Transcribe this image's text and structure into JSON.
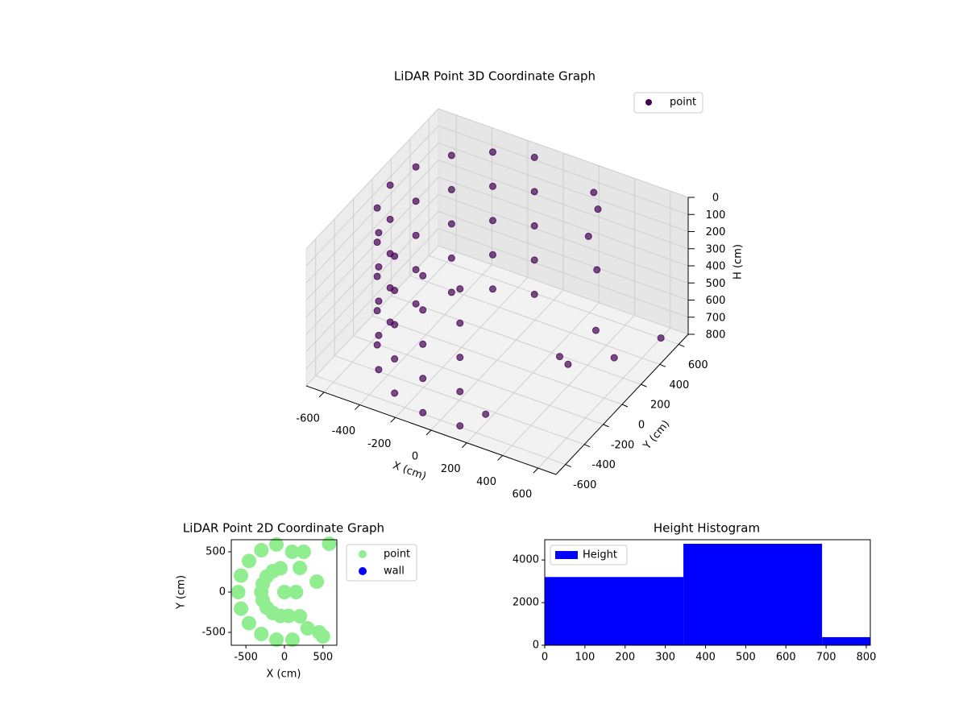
{
  "chart_data": [
    {
      "type": "scatter3d",
      "title": "LiDAR Point 3D Coordinate Graph",
      "xlabel": "X (cm)",
      "ylabel": "Y (cm)",
      "zlabel": "H (cm)",
      "series": [
        {
          "name": "point",
          "color": "#440154",
          "x": [
            -104,
            -104,
            -104,
            -104,
            -104,
            -300,
            -300,
            -300,
            -300,
            -300,
            -460,
            -460,
            -460,
            -460,
            -460,
            -564,
            -564,
            -564,
            -564,
            -564,
            -600,
            -600,
            -600,
            -600,
            -600,
            -564,
            -564,
            -564,
            -564,
            -564,
            -460,
            -460,
            -460,
            -460,
            -460,
            -300,
            -300,
            -300,
            -300,
            -300,
            -104,
            -104,
            -104,
            -104,
            -104,
            104,
            104,
            104,
            104,
            104,
            300,
            400,
            500,
            450,
            300,
            550,
            200,
            600,
            350,
            250
          ],
          "y": [
            591,
            591,
            591,
            591,
            591,
            520,
            520,
            520,
            520,
            520,
            386,
            386,
            386,
            386,
            386,
            205,
            205,
            205,
            205,
            205,
            0,
            0,
            0,
            0,
            0,
            -205,
            -205,
            -205,
            -205,
            -205,
            -386,
            -386,
            -386,
            -386,
            -386,
            -520,
            -520,
            -520,
            -520,
            -520,
            -591,
            -591,
            -591,
            -591,
            -591,
            -591,
            -591,
            -591,
            -591,
            -591,
            500,
            300,
            100,
            -100,
            400,
            200,
            -500,
            600,
            0,
            550
          ],
          "z": [
            0,
            200,
            400,
            600,
            800,
            0,
            200,
            400,
            600,
            800,
            0,
            200,
            400,
            600,
            800,
            0,
            200,
            400,
            600,
            800,
            0,
            200,
            400,
            600,
            800,
            0,
            200,
            400,
            600,
            800,
            0,
            200,
            400,
            600,
            800,
            0,
            200,
            400,
            600,
            800,
            0,
            200,
            400,
            600,
            800,
            0,
            200,
            400,
            600,
            800,
            100,
            300,
            500,
            600,
            200,
            700,
            750,
            800,
            650,
            50
          ]
        }
      ],
      "xlim": [
        -700,
        700
      ],
      "ylim": [
        -700,
        700
      ],
      "zlim": [
        800,
        0
      ],
      "xticks": [
        -600,
        -400,
        -200,
        0,
        200,
        400,
        600
      ],
      "yticks": [
        -600,
        -400,
        -200,
        0,
        200,
        400,
        600
      ],
      "zticks": [
        0,
        100,
        200,
        300,
        400,
        500,
        600,
        700,
        800
      ],
      "grid": true,
      "legend": "upper right"
    },
    {
      "type": "scatter",
      "title": "LiDAR Point 2D Coordinate Graph",
      "xlabel": "X (cm)",
      "ylabel": "Y (cm)",
      "series": [
        {
          "name": "point",
          "color": "#90ee90",
          "x": [
            -104,
            -300,
            -460,
            -564,
            -600,
            -564,
            -460,
            -300,
            -104,
            104,
            -52,
            -150,
            -230,
            -282,
            -300,
            -282,
            -230,
            -150,
            -52,
            52,
            0,
            150,
            200,
            200,
            100,
            250,
            300,
            450,
            500,
            420,
            580
          ],
          "y": [
            591,
            520,
            386,
            205,
            0,
            -205,
            -386,
            -520,
            -591,
            -591,
            296,
            260,
            193,
            102,
            0,
            -102,
            -193,
            -260,
            -296,
            -296,
            0,
            0,
            300,
            -300,
            500,
            500,
            -450,
            -500,
            -550,
            130,
            600
          ]
        },
        {
          "name": "wall",
          "color": "#0000ff",
          "x": [],
          "y": []
        }
      ],
      "xlim": [
        -690,
        680
      ],
      "ylim": [
        -660,
        650
      ],
      "xticks": [
        -500,
        0,
        500
      ],
      "yticks": [
        -500,
        0,
        500
      ],
      "legend": "outside right"
    },
    {
      "type": "histogram",
      "title": "Height Histogram",
      "series": [
        {
          "name": "Height",
          "color": "#0000ff",
          "values": [
            3200,
            4760,
            380
          ]
        }
      ],
      "bins": [
        0,
        345,
        690,
        810
      ],
      "xlim": [
        0,
        810
      ],
      "ylim": [
        0,
        4950
      ],
      "xticks": [
        0,
        100,
        200,
        300,
        400,
        500,
        600,
        700,
        800
      ],
      "yticks": [
        0,
        2000,
        4000
      ],
      "legend": "upper left"
    }
  ]
}
